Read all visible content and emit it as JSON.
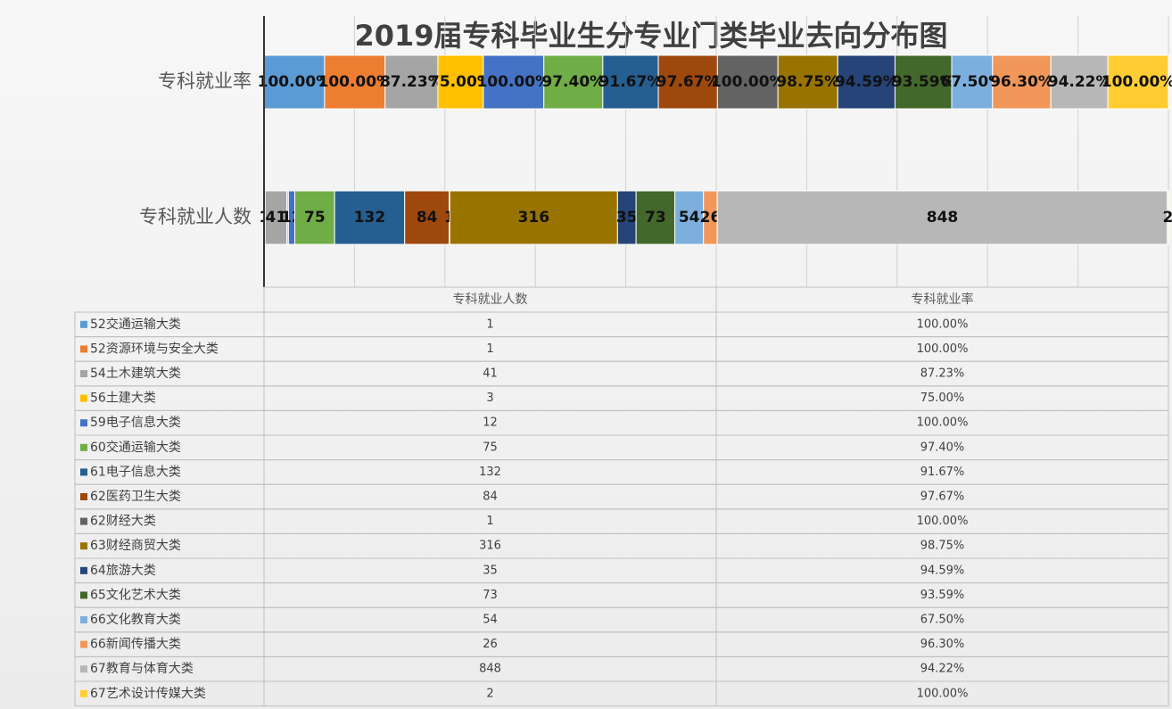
{
  "chart_data": {
    "type": "stacked_bar_100",
    "title": "2019届专科毕业生分专业门类毕业去向分布图",
    "categories": [
      "专科就业人数",
      "专科就业率"
    ],
    "xlim": [
      0,
      100
    ],
    "xticks": [
      0,
      10,
      20,
      30,
      40,
      50,
      60,
      70,
      80,
      90,
      100
    ],
    "grid": true,
    "series": [
      {
        "name": "52交通运输大类",
        "color": "#5b9bd5",
        "values": [
          1,
          100
        ],
        "value_labels": [
          "1",
          "100.00%"
        ]
      },
      {
        "name": "52资源环境与安全大类",
        "color": "#ed7d31",
        "values": [
          1,
          100
        ],
        "value_labels": [
          "1",
          "100.00%"
        ]
      },
      {
        "name": "54土木建筑大类",
        "color": "#a5a5a5",
        "values": [
          41,
          87.23
        ],
        "value_labels": [
          "41",
          "87.23%"
        ]
      },
      {
        "name": "56土建大类",
        "color": "#ffc000",
        "values": [
          3,
          75
        ],
        "value_labels": [
          "3",
          "75.00%"
        ]
      },
      {
        "name": "59电子信息大类",
        "color": "#4472c4",
        "values": [
          12,
          100
        ],
        "value_labels": [
          "12",
          "100.00%"
        ]
      },
      {
        "name": "60交通运输大类",
        "color": "#70ad47",
        "values": [
          75,
          97.4
        ],
        "value_labels": [
          "75",
          "97.40%"
        ]
      },
      {
        "name": "61电子信息大类",
        "color": "#255e91",
        "values": [
          132,
          91.67
        ],
        "value_labels": [
          "132",
          "91.67%"
        ]
      },
      {
        "name": "62医药卫生大类",
        "color": "#9e480e",
        "values": [
          84,
          97.67
        ],
        "value_labels": [
          "84",
          "97.67%"
        ]
      },
      {
        "name": "62财经大类",
        "color": "#636363",
        "values": [
          1,
          100
        ],
        "value_labels": [
          "1",
          "100.00%"
        ]
      },
      {
        "name": "63财经商贸大类",
        "color": "#997300",
        "values": [
          316,
          98.75
        ],
        "value_labels": [
          "316",
          "98.75%"
        ]
      },
      {
        "name": "64旅游大类",
        "color": "#264478",
        "values": [
          35,
          94.59
        ],
        "value_labels": [
          "35",
          "94.59%"
        ]
      },
      {
        "name": "65文化艺术大类",
        "color": "#43682b",
        "values": [
          73,
          93.59
        ],
        "value_labels": [
          "73",
          "93.59%"
        ]
      },
      {
        "name": "66文化教育大类",
        "color": "#7cafdd",
        "values": [
          54,
          67.5
        ],
        "value_labels": [
          "54",
          "67.50%"
        ]
      },
      {
        "name": "66新闻传播大类",
        "color": "#f1975a",
        "values": [
          26,
          96.3
        ],
        "value_labels": [
          "26",
          "96.30%"
        ]
      },
      {
        "name": "67教育与体育大类",
        "color": "#b7b7b7",
        "values": [
          848,
          94.22
        ],
        "value_labels": [
          "848",
          "94.22%"
        ]
      },
      {
        "name": "67艺术设计传媒大类",
        "color": "#ffcd33",
        "values": [
          2,
          100
        ],
        "value_labels": [
          "2",
          "100.00%"
        ]
      }
    ]
  }
}
